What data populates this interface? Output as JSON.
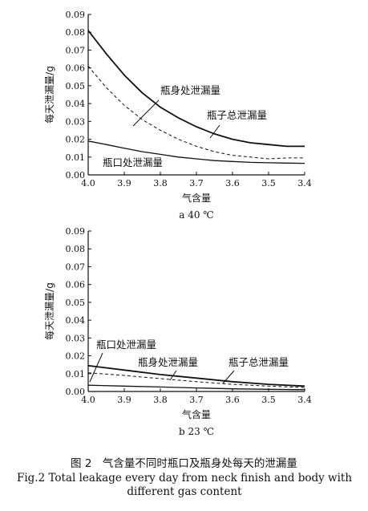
{
  "chart_data": [
    {
      "type": "line",
      "sub_caption": "a 40 ℃",
      "xlabel": "气含量",
      "ylabel": "每天泄漏量/g",
      "xlim": [
        4.0,
        3.4
      ],
      "ylim": [
        0,
        0.09
      ],
      "xticks": [
        "4.0",
        "3.9",
        "3.8",
        "3.7",
        "3.6",
        "3.5",
        "3.4"
      ],
      "yticks": [
        "0.00",
        "0.01",
        "0.02",
        "0.03",
        "0.04",
        "0.05",
        "0.06",
        "0.07",
        "0.08",
        "0.09"
      ],
      "x": [
        4.0,
        3.95,
        3.9,
        3.85,
        3.8,
        3.75,
        3.7,
        3.65,
        3.6,
        3.55,
        3.5,
        3.45,
        3.4
      ],
      "series": [
        {
          "name": "瓶子总泄漏量",
          "style": "solid-thick",
          "values": [
            0.081,
            0.068,
            0.056,
            0.046,
            0.038,
            0.032,
            0.027,
            0.023,
            0.02,
            0.018,
            0.017,
            0.016,
            0.016
          ]
        },
        {
          "name": "瓶身处泄漏量",
          "style": "dashed",
          "values": [
            0.061,
            0.049,
            0.039,
            0.031,
            0.025,
            0.02,
            0.016,
            0.013,
            0.011,
            0.01,
            0.009,
            0.0095,
            0.0095
          ]
        },
        {
          "name": "瓶口处泄漏量",
          "style": "solid",
          "values": [
            0.019,
            0.017,
            0.015,
            0.013,
            0.0115,
            0.01,
            0.009,
            0.008,
            0.0075,
            0.007,
            0.0068,
            0.0066,
            0.0065
          ]
        }
      ],
      "annotations": [
        "瓶身处泄漏量",
        "瓶子总泄漏量",
        "瓶口处泄漏量"
      ]
    },
    {
      "type": "line",
      "sub_caption": "b 23 ℃",
      "xlabel": "气含量",
      "ylabel": "每天泄漏量/g",
      "xlim": [
        4.0,
        3.4
      ],
      "ylim": [
        0,
        0.09
      ],
      "xticks": [
        "4.0",
        "3.9",
        "3.8",
        "3.7",
        "3.6",
        "3.5",
        "3.4"
      ],
      "yticks": [
        "0.00",
        "0.01",
        "0.02",
        "0.03",
        "0.04",
        "0.05",
        "0.06",
        "0.07",
        "0.08",
        "0.09"
      ],
      "x": [
        4.0,
        3.9,
        3.8,
        3.7,
        3.6,
        3.5,
        3.4
      ],
      "series": [
        {
          "name": "瓶子总泄漏量",
          "style": "solid-thick",
          "values": [
            0.0145,
            0.012,
            0.0095,
            0.0075,
            0.0055,
            0.004,
            0.003
          ]
        },
        {
          "name": "瓶身处泄漏量",
          "style": "dashed",
          "values": [
            0.0105,
            0.009,
            0.0072,
            0.0055,
            0.004,
            0.003,
            0.0022
          ]
        },
        {
          "name": "瓶口处泄漏量",
          "style": "solid",
          "values": [
            0.0035,
            0.003,
            0.0025,
            0.002,
            0.0015,
            0.0012,
            0.001
          ]
        }
      ],
      "annotations": [
        "瓶口处泄漏量",
        "瓶身处泄漏量",
        "瓶子总泄漏量"
      ]
    }
  ],
  "caption": {
    "chinese": "图 2　气含量不同时瓶口及瓶身处每天的泄漏量",
    "english_line1": "Fig.2 Total leakage every day from neck finish and body with",
    "english_line2": "different gas content"
  }
}
